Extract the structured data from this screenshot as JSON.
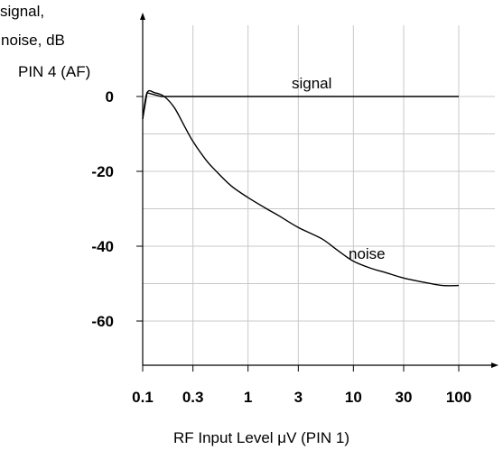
{
  "chart_data": {
    "type": "line",
    "ylabel_lines": [
      "signal,",
      "noise, dB",
      "PIN 4 (AF)"
    ],
    "xlabel": "RF  Input Level  μV  (PIN  1)",
    "x_scale": "log",
    "xlim": [
      0.1,
      100
    ],
    "ylim": [
      -70,
      4
    ],
    "grid": true,
    "x_ticks": [
      {
        "value": 0.1,
        "label": "0.1"
      },
      {
        "value": 0.3,
        "label": "0.3"
      },
      {
        "value": 1,
        "label": "1"
      },
      {
        "value": 3,
        "label": "3"
      },
      {
        "value": 10,
        "label": "10"
      },
      {
        "value": 30,
        "label": "30"
      },
      {
        "value": 100,
        "label": "100"
      }
    ],
    "y_ticks": [
      {
        "value": 0,
        "label": "0"
      },
      {
        "value": -20,
        "label": "-20"
      },
      {
        "value": -40,
        "label": "-40"
      },
      {
        "value": -60,
        "label": "-60"
      }
    ],
    "series": [
      {
        "name": "signal",
        "color": "#000000",
        "x": [
          0.1,
          0.11,
          0.15,
          100
        ],
        "y": [
          -6,
          1,
          0,
          0
        ]
      },
      {
        "name": "noise",
        "color": "#000000",
        "x": [
          0.1,
          0.11,
          0.13,
          0.16,
          0.2,
          0.25,
          0.3,
          0.4,
          0.5,
          0.7,
          1,
          1.5,
          2,
          3,
          5,
          7,
          10,
          15,
          20,
          30,
          50,
          70,
          100
        ],
        "y": [
          -6,
          1,
          1,
          0,
          -3,
          -8,
          -12,
          -17,
          -20,
          -24,
          -27,
          -30,
          -32,
          -35,
          -38,
          -41,
          -44,
          -46,
          -47,
          -48.5,
          -49.8,
          -50.5,
          -50.5
        ]
      }
    ]
  }
}
